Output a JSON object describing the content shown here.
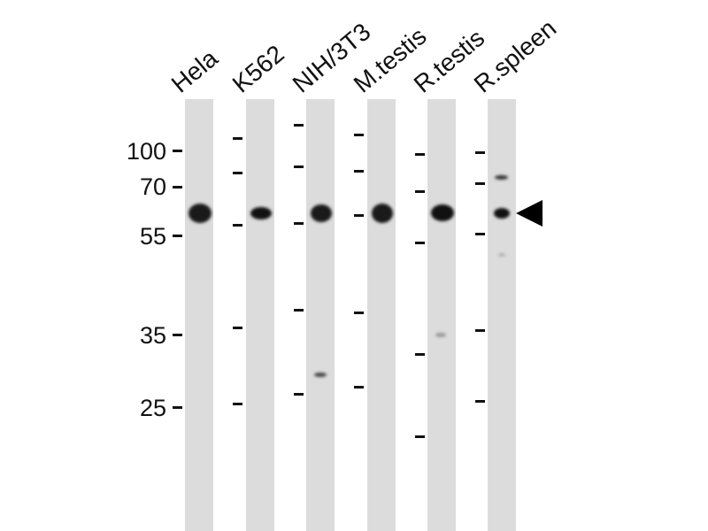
{
  "lanes": [
    {
      "label": "Hela"
    },
    {
      "label": "K562"
    },
    {
      "label": "NIH/3T3"
    },
    {
      "label": "M.testis"
    },
    {
      "label": "R.testis"
    },
    {
      "label": "R.spleen"
    }
  ],
  "markers": [
    "100",
    "70",
    "55",
    "35",
    "25"
  ],
  "arrow": "target-band-arrow-icon"
}
